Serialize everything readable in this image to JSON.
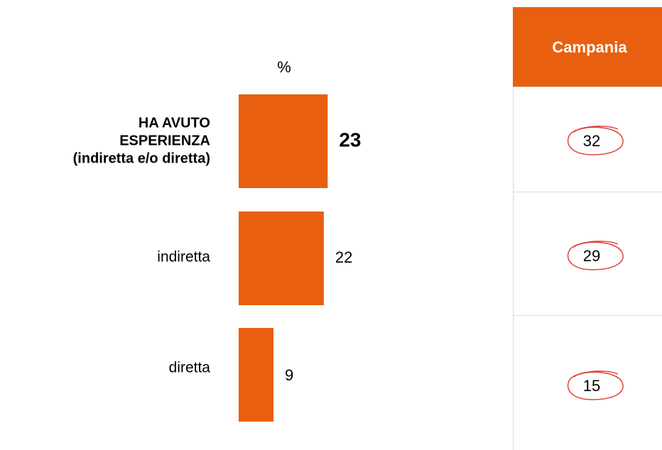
{
  "chart_data": {
    "type": "bar",
    "orientation": "horizontal",
    "unit_label": "%",
    "categories": [
      "HA AVUTO\nESPERIENZA\n(indiretta e/o diretta)",
      "indiretta",
      "diretta"
    ],
    "values": [
      23,
      22,
      9
    ],
    "color": "#e8600f"
  },
  "table": {
    "header": "Campania",
    "header_color": "#e8600f",
    "rows": [
      32,
      29,
      15
    ]
  }
}
